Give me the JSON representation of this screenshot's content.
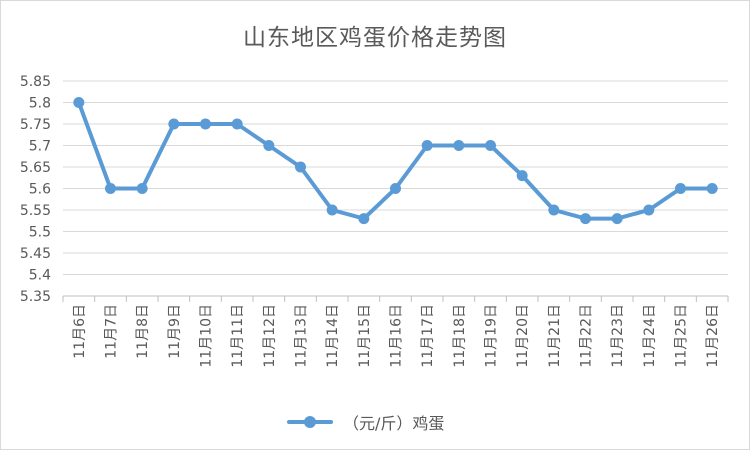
{
  "chart_data": {
    "type": "line",
    "title": "山东地区鸡蛋价格走势图",
    "categories": [
      "11月6日",
      "11月7日",
      "11月8日",
      "11月9日",
      "11月10日",
      "11月11日",
      "11月12日",
      "11月13日",
      "11月14日",
      "11月15日",
      "11月16日",
      "11月17日",
      "11月18日",
      "11月19日",
      "11月20日",
      "11月21日",
      "11月22日",
      "11月23日",
      "11月24日",
      "11月25日",
      "11月26日"
    ],
    "series": [
      {
        "name": "（元/斤）鸡蛋",
        "values": [
          5.8,
          5.6,
          5.6,
          5.75,
          5.75,
          5.75,
          5.7,
          5.65,
          5.55,
          5.53,
          5.6,
          5.7,
          5.7,
          5.7,
          5.63,
          5.55,
          5.53,
          5.53,
          5.55,
          5.6,
          5.6
        ],
        "color": "#5b9bd5"
      }
    ],
    "yticks": [
      "5.35",
      "5.4",
      "5.45",
      "5.5",
      "5.55",
      "5.6",
      "5.65",
      "5.7",
      "5.75",
      "5.8",
      "5.85"
    ],
    "ylim": [
      5.35,
      5.85
    ],
    "grid": true,
    "legend_position": "bottom"
  }
}
